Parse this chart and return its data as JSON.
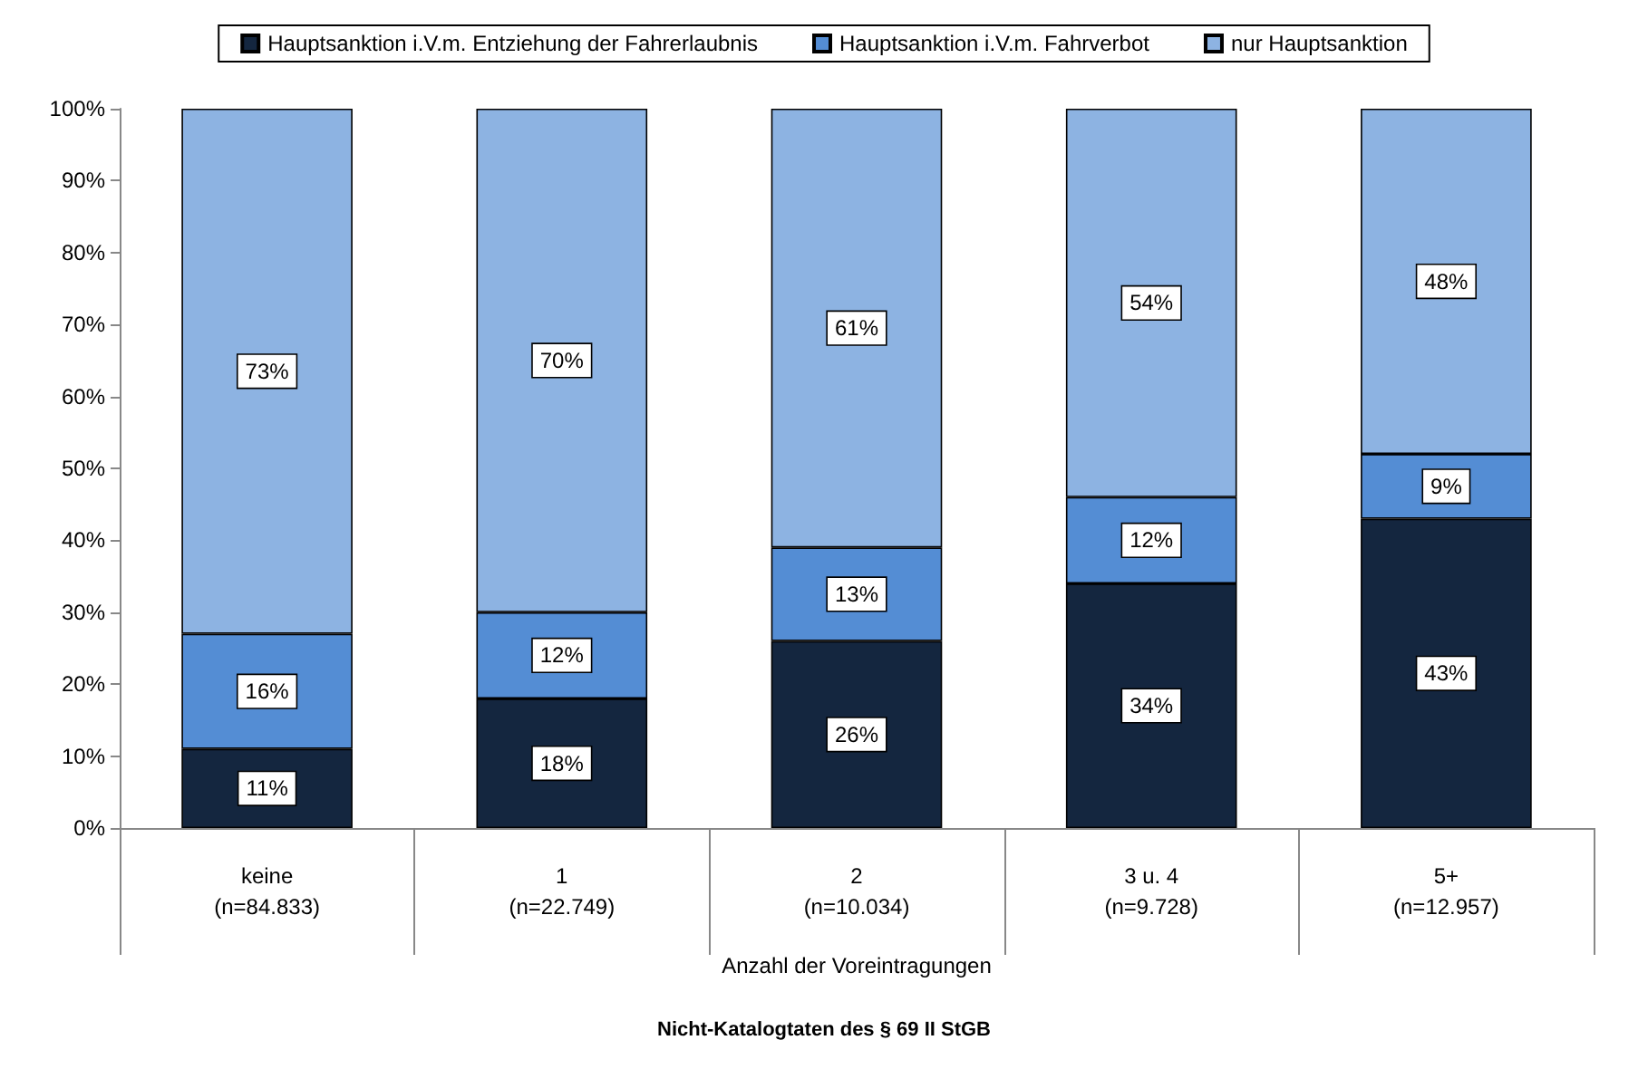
{
  "chart_data": {
    "type": "bar",
    "stacked": true,
    "xlabel": "Anzahl der Voreintragungen",
    "annotations": [
      "Nicht-Katalogtaten des § 69 II StGB"
    ],
    "categories": [
      "keine\n(n=84.833)",
      "1\n(n=22.749)",
      "2\n(n=10.034)",
      "3 u. 4\n(n=9.728)",
      "5+\n(n=12.957)"
    ],
    "series": [
      {
        "name": "Hauptsanktion i.V.m. Entziehung der Fahrerlaubnis",
        "color": "#14263f",
        "values": [
          11,
          18,
          26,
          34,
          43
        ],
        "value_labels": [
          "11%",
          "18%",
          "26%",
          "34%",
          "43%"
        ]
      },
      {
        "name": "Hauptsanktion i.V.m. Fahrverbot",
        "color": "#548dd4",
        "values": [
          16,
          12,
          13,
          12,
          9
        ],
        "value_labels": [
          "16%",
          "12%",
          "13%",
          "12%",
          "9%"
        ]
      },
      {
        "name": "nur Hauptsanktion",
        "color": "#8db3e2",
        "values": [
          73,
          70,
          61,
          54,
          48
        ],
        "value_labels": [
          "73%",
          "70%",
          "61%",
          "54%",
          "48%"
        ]
      }
    ],
    "ylim": [
      0,
      100
    ],
    "yticks": [
      {
        "value": 0,
        "label": "0%"
      },
      {
        "value": 10,
        "label": "10%"
      },
      {
        "value": 20,
        "label": "20%"
      },
      {
        "value": 30,
        "label": "30%"
      },
      {
        "value": 40,
        "label": "40%"
      },
      {
        "value": 50,
        "label": "50%"
      },
      {
        "value": 60,
        "label": "60%"
      },
      {
        "value": 70,
        "label": "70%"
      },
      {
        "value": 80,
        "label": "80%"
      },
      {
        "value": 90,
        "label": "90%"
      },
      {
        "value": 100,
        "label": "100%"
      }
    ],
    "grid": false,
    "legend": "top"
  }
}
